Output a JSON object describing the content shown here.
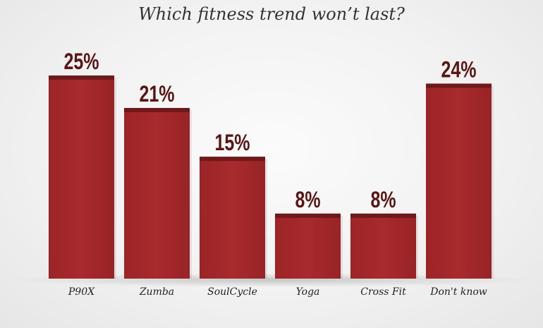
{
  "chart_data": {
    "type": "bar",
    "title": "Which fitness trend won’t last?",
    "xlabel": "",
    "ylabel": "",
    "categories": [
      "P90X",
      "Zumba",
      "SoulCycle",
      "Yoga",
      "Cross Fit",
      "Don't know"
    ],
    "values": [
      25,
      21,
      15,
      8,
      8,
      24
    ],
    "value_labels": [
      "25%",
      "21%",
      "15%",
      "8%",
      "8%",
      "24%"
    ],
    "ylim": [
      0,
      25
    ],
    "grid": false,
    "legend": "none",
    "colors": {
      "bar": "#a4282b",
      "bar_cap": "#6e1a1d",
      "value_text": "#5a1515",
      "background": "#f2f2f2"
    }
  }
}
